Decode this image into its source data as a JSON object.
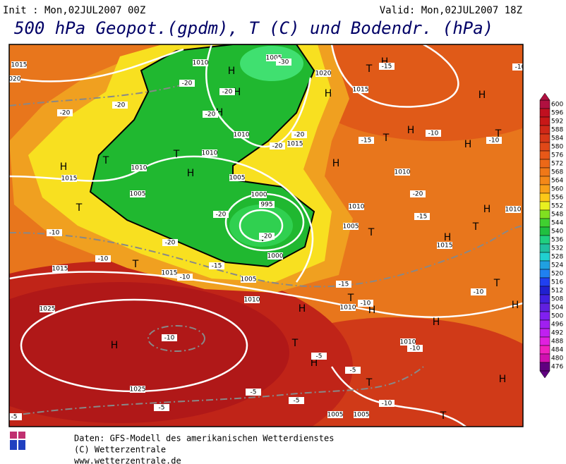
{
  "header": {
    "init": "Init : Mon,02JUL2007 00Z",
    "valid": "Valid: Mon,02JUL2007 18Z",
    "title": "500 hPa Geopot.(gpdm), T (C) und Bodendr. (hPa)"
  },
  "map": {
    "labels": [
      "H",
      "H",
      "H",
      "H",
      "H",
      "H",
      "H",
      "H",
      "H",
      "H",
      "H",
      "H",
      "H",
      "H",
      "H",
      "H",
      "H",
      "H",
      "H",
      "H",
      "T",
      "T",
      "T",
      "T",
      "T",
      "T",
      "T",
      "T",
      "T",
      "T",
      "T",
      "T",
      "T",
      "T",
      "T",
      "1005",
      "1010",
      "1015",
      "1020",
      "1015",
      "1010",
      "1010",
      "1005",
      "1005",
      "1000",
      "995",
      "1000",
      "1005",
      "1010",
      "1015",
      "1015",
      "1025",
      "1025",
      "1005",
      "1005",
      "1010",
      "1010",
      "1005",
      "1010",
      "1015",
      "1010",
      "1010",
      "1015",
      "1010",
      "1015",
      "1020",
      "-20",
      "-20",
      "-20",
      "-20",
      "-20",
      "-20",
      "-20",
      "-20",
      "-10",
      "-10",
      "-15",
      "-10",
      "-15",
      "-10",
      "-10",
      "-5",
      "-5",
      "-5",
      "-5",
      "-5",
      "-10",
      "-10",
      "-15",
      "-20",
      "-10",
      "-15",
      "-20",
      "-20",
      "-10",
      "-10",
      "-15",
      "-10",
      "-30",
      "-5"
    ]
  },
  "legend": {
    "values": [
      600,
      596,
      592,
      588,
      584,
      580,
      576,
      572,
      568,
      564,
      560,
      556,
      552,
      548,
      544,
      540,
      536,
      532,
      528,
      524,
      520,
      516,
      512,
      508,
      504,
      500,
      496,
      492,
      488,
      484,
      480,
      476
    ]
  },
  "footer": {
    "lines": [
      "Daten: GFS-Modell des amerikanischen Wetterdienstes",
      "(C) Wetterzentrale",
      "www.wetterzentrale.de"
    ]
  }
}
